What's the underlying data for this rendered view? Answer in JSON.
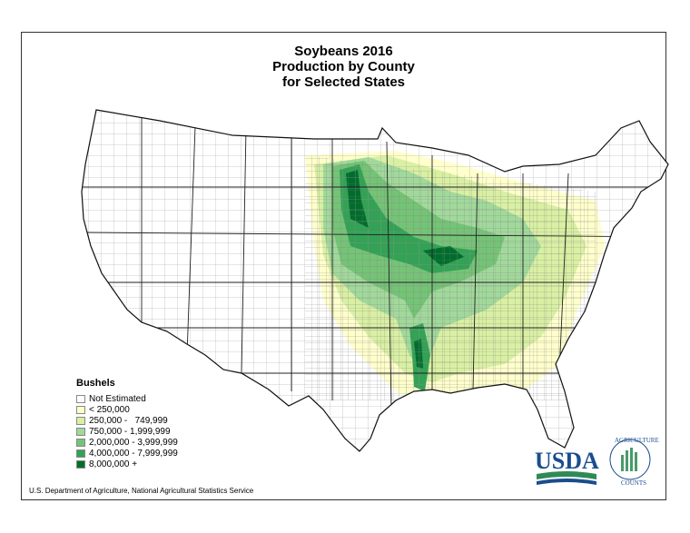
{
  "title": {
    "line1": "Soybeans 2016",
    "line2": "Production by County",
    "line3": "for Selected States"
  },
  "legend": {
    "title": "Bushels",
    "items": [
      {
        "label": "Not Estimated",
        "color": "#ffffff"
      },
      {
        "label": "< 250,000",
        "color": "#ffffcc"
      },
      {
        "label": "250,000 -   749,999",
        "color": "#d9f0a3"
      },
      {
        "label": "750,000 - 1,999,999",
        "color": "#a1d99b"
      },
      {
        "label": "2,000,000 - 3,999,999",
        "color": "#74c476"
      },
      {
        "label": "4,000,000 - 7,999,999",
        "color": "#31a354"
      },
      {
        "label": "8,000,000 +",
        "color": "#006d2c"
      }
    ]
  },
  "footer": "U.S. Department of Agriculture, National Agricultural Statistics Service",
  "logo": {
    "usda": "USDA",
    "arc_top": "AGRICULTURE",
    "arc_bottom": "COUNTS"
  }
}
